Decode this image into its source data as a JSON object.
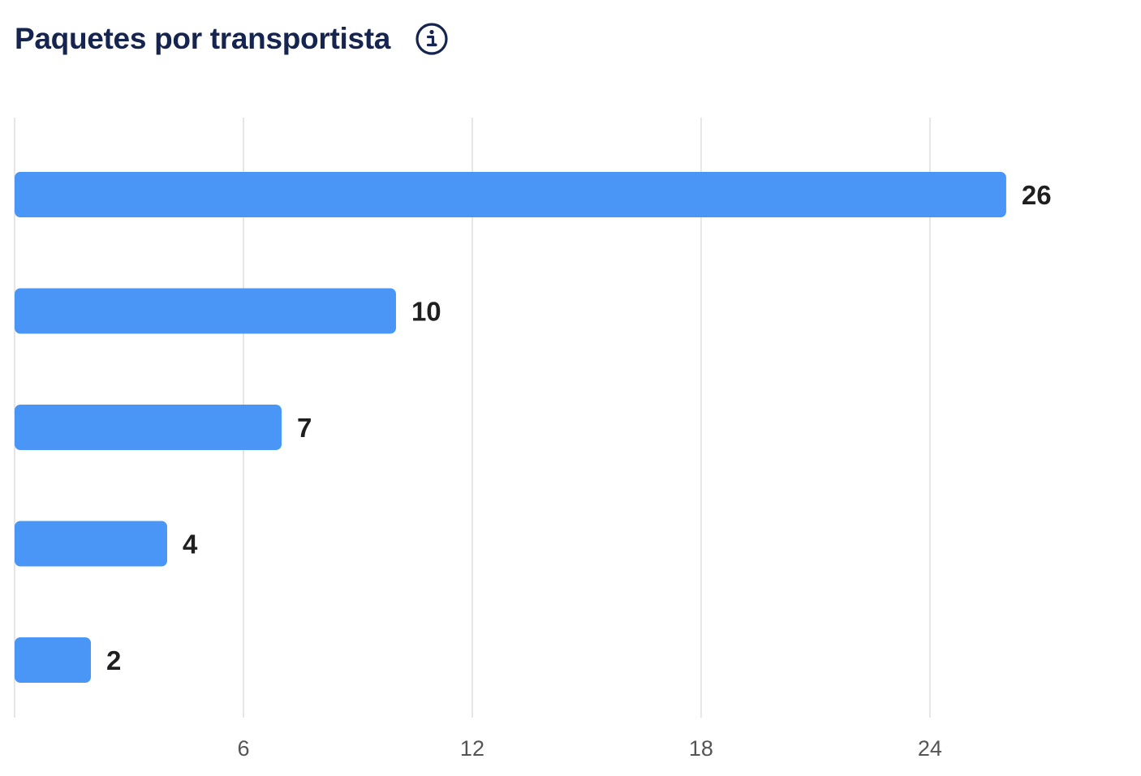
{
  "header": {
    "title": "Paquetes por transportista",
    "info_icon": "info-circle-icon"
  },
  "colors": {
    "bar": "#4a96f6",
    "title": "#16254f",
    "grid": "#e6e6e6",
    "value_label": "#1f1f1f",
    "tick_label": "#555555"
  },
  "chart_data": {
    "type": "bar",
    "orientation": "horizontal",
    "title": "Paquetes por transportista",
    "categories": [
      "",
      "",
      "",
      "",
      ""
    ],
    "values": [
      26,
      10,
      7,
      4,
      2
    ],
    "data_labels": [
      "26",
      "10",
      "7",
      "4",
      "2"
    ],
    "xlim": [
      0,
      28.3
    ],
    "xticks": [
      6,
      12,
      18,
      24
    ],
    "xtick_labels": [
      "6",
      "12",
      "18",
      "24"
    ],
    "xlabel": "",
    "ylabel": "",
    "grid": "vertical",
    "legend": "none"
  }
}
